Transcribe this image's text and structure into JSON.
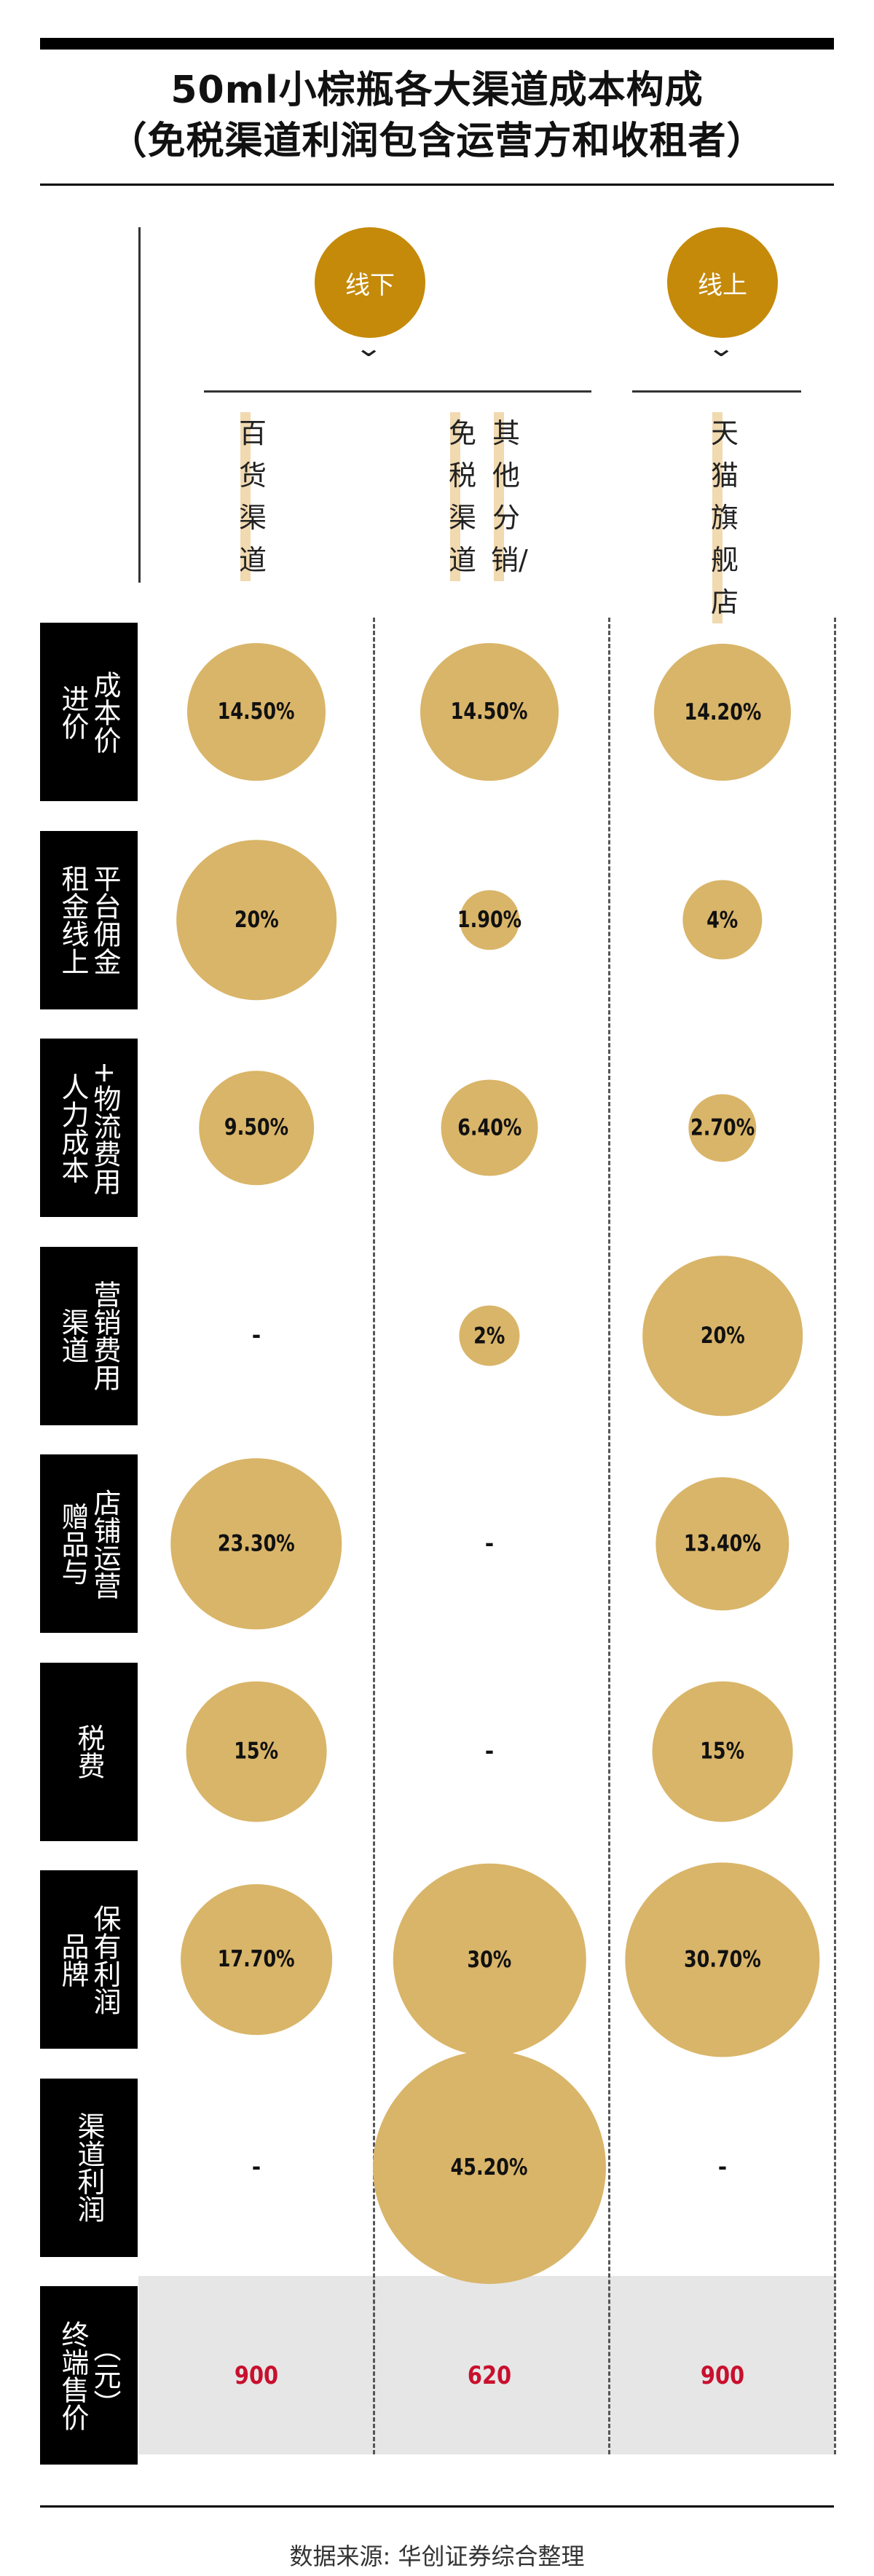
{
  "title_line1": "50ml小棕瓶各大渠道成本构成",
  "title_line2": "（免税渠道利润包含运营方和收租者）",
  "groups": {
    "offline": "线下",
    "online": "线上"
  },
  "chevron": "⌄",
  "channels": [
    "百货渠道",
    "免税渠道",
    "其他分销/",
    "天猫旗舰店"
  ],
  "rows": [
    {
      "label": [
        "成本价",
        "进价"
      ]
    },
    {
      "label": [
        "平台佣金",
        "租金线上"
      ]
    },
    {
      "label": [
        "+物流费用",
        "人力成本"
      ]
    },
    {
      "label": [
        "营销费用",
        "渠道"
      ]
    },
    {
      "label": [
        "店铺运营",
        "赠品与"
      ]
    },
    {
      "label": [
        "税费"
      ]
    },
    {
      "label": [
        "保有利润",
        "品牌"
      ]
    },
    {
      "label": [
        "渠道利润"
      ]
    },
    {
      "label": [
        "（元）",
        "终端售价"
      ]
    }
  ],
  "chart_data": {
    "type": "bubble",
    "columns": [
      "百货渠道",
      "免税渠道",
      "天猫旗舰店"
    ],
    "rows": [
      {
        "name": "进价成本价",
        "values": [
          "14.50%",
          "14.50%",
          "14.20%"
        ]
      },
      {
        "name": "线上平台佣金租金",
        "values": [
          "20%",
          "1.90%",
          "4%"
        ]
      },
      {
        "name": "人力成本+物流费用",
        "values": [
          "9.50%",
          "6.40%",
          "2.70%"
        ]
      },
      {
        "name": "渠道营销费用",
        "values": [
          "-",
          "2%",
          "20%"
        ]
      },
      {
        "name": "赠品与店铺运营",
        "values": [
          "23.30%",
          "-",
          "13.40%"
        ]
      },
      {
        "name": "税费",
        "values": [
          "15%",
          "-",
          "15%"
        ]
      },
      {
        "name": "品牌保有利润",
        "values": [
          "17.70%",
          "30%",
          "30.70%"
        ]
      },
      {
        "name": "渠道利润",
        "values": [
          "-",
          "45.20%",
          "-"
        ]
      }
    ],
    "numeric_rows": [
      [
        14.5,
        14.5,
        14.2
      ],
      [
        20,
        1.9,
        4
      ],
      [
        9.5,
        6.4,
        2.7
      ],
      [
        null,
        2,
        20
      ],
      [
        23.3,
        null,
        13.4
      ],
      [
        15,
        null,
        15
      ],
      [
        17.7,
        30,
        30.7
      ],
      [
        null,
        45.2,
        null
      ]
    ],
    "prices": [
      "900",
      "620",
      "900"
    ],
    "bubble_color": "#d9b569",
    "price_color": "#c8102e"
  },
  "source": "数据来源: 华创证券综合整理"
}
